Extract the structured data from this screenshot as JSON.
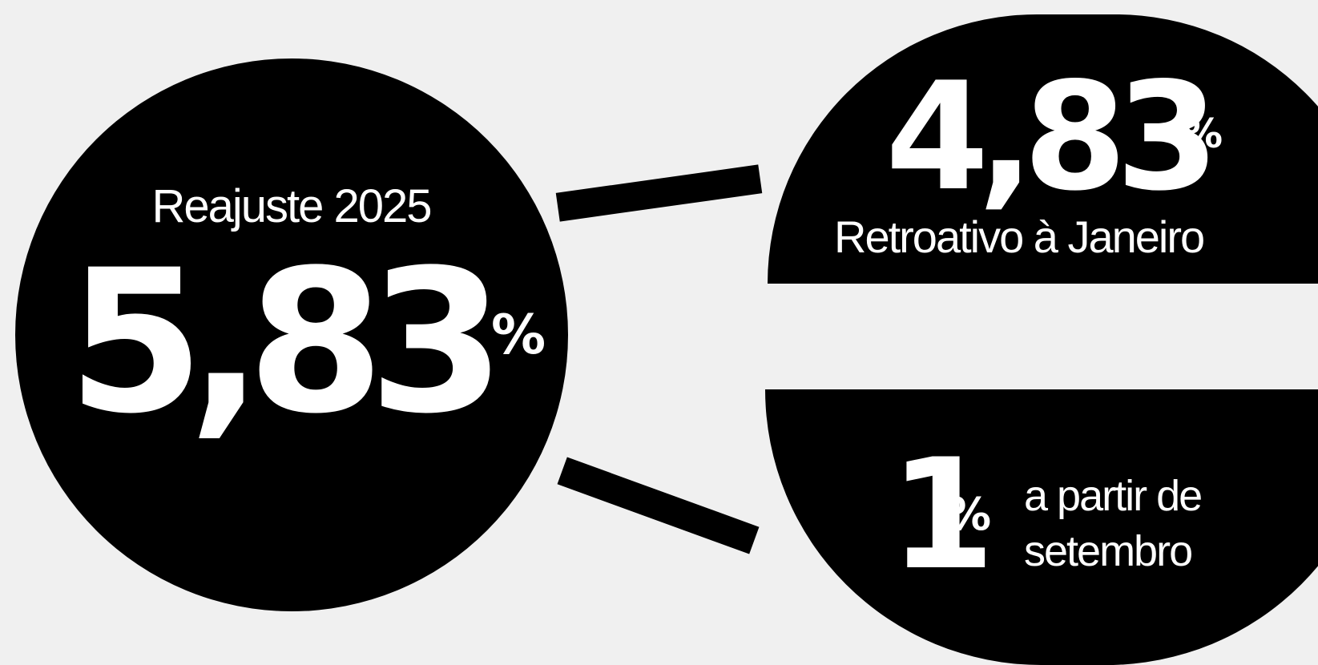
{
  "colors": {
    "background": "#f0f0f0",
    "shape": "#000000",
    "text": "#ffffff"
  },
  "main": {
    "label": "Reajuste 2025",
    "value": "5,83",
    "percent": "%"
  },
  "retroactive": {
    "value": "4,83",
    "percent": "%",
    "label": "Retroativo à Janeiro"
  },
  "september": {
    "value": "1",
    "percent": "%",
    "label_line1": "a partir de",
    "label_line2": "setembro"
  }
}
